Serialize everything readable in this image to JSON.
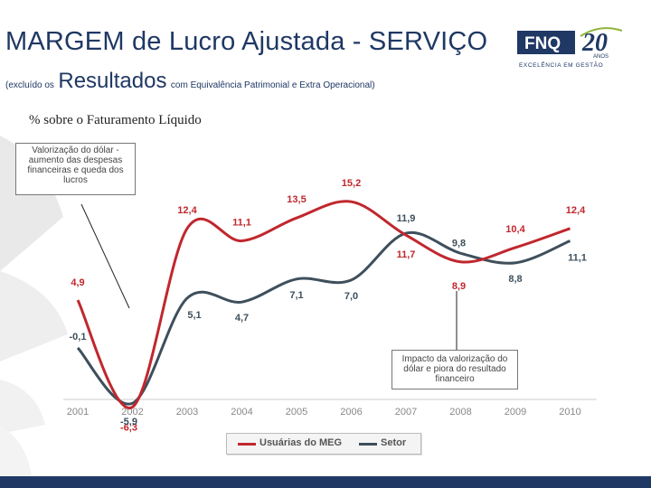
{
  "header": {
    "title": "MARGEM de Lucro Ajustada - SERVIÇO",
    "subtitle_prefix": "(excluído os",
    "subtitle_main": "Resultados",
    "subtitle_suffix": "com Equivalência Patrimonial e Extra Operacional)"
  },
  "logo": {
    "brand": "FNQ",
    "years_number": "20",
    "years_word": "ANOS",
    "tagline": "EXCELÊNCIA EM GESTÃO"
  },
  "colors": {
    "title": "#1f3864",
    "series_meg": "#c0272d",
    "series_setor": "#3e4f5c",
    "accent_bar": "#1f3864"
  },
  "chart_data": {
    "type": "line",
    "title": "% sobre o Faturamento Líquido",
    "xlabel": "",
    "ylabel": "",
    "x": [
      "2001",
      "2002",
      "2003",
      "2004",
      "2005",
      "2006",
      "2007",
      "2008",
      "2009",
      "2010"
    ],
    "ylim": [
      -7,
      16
    ],
    "series": [
      {
        "name": "Usuárias do MEG",
        "values": [
          4.9,
          -6.3,
          12.4,
          11.1,
          13.5,
          15.2,
          11.7,
          8.9,
          10.4,
          12.4
        ],
        "labels": [
          "4,9",
          "-6,3",
          "12,4",
          "11,1",
          "13,5",
          "15,2",
          "11,7",
          "8,9",
          "10,4",
          "12,4"
        ]
      },
      {
        "name": "Setor",
        "values": [
          -0.1,
          -5.9,
          5.1,
          4.7,
          7.1,
          7.0,
          11.9,
          9.8,
          8.8,
          11.1
        ],
        "labels": [
          "-0,1",
          "-5,9",
          "5,1",
          "4,7",
          "7,1",
          "7,0",
          "11,9",
          "9,8",
          "8,8",
          "11,1"
        ]
      }
    ],
    "annotations": [
      {
        "text": "Valorização do dólar - aumento das despesas financeiras e queda dos lucros"
      },
      {
        "text": "Impacto da valorização do dólar e piora do resultado financeiro"
      }
    ],
    "legend": [
      "Usuárias do MEG",
      "Setor"
    ]
  }
}
